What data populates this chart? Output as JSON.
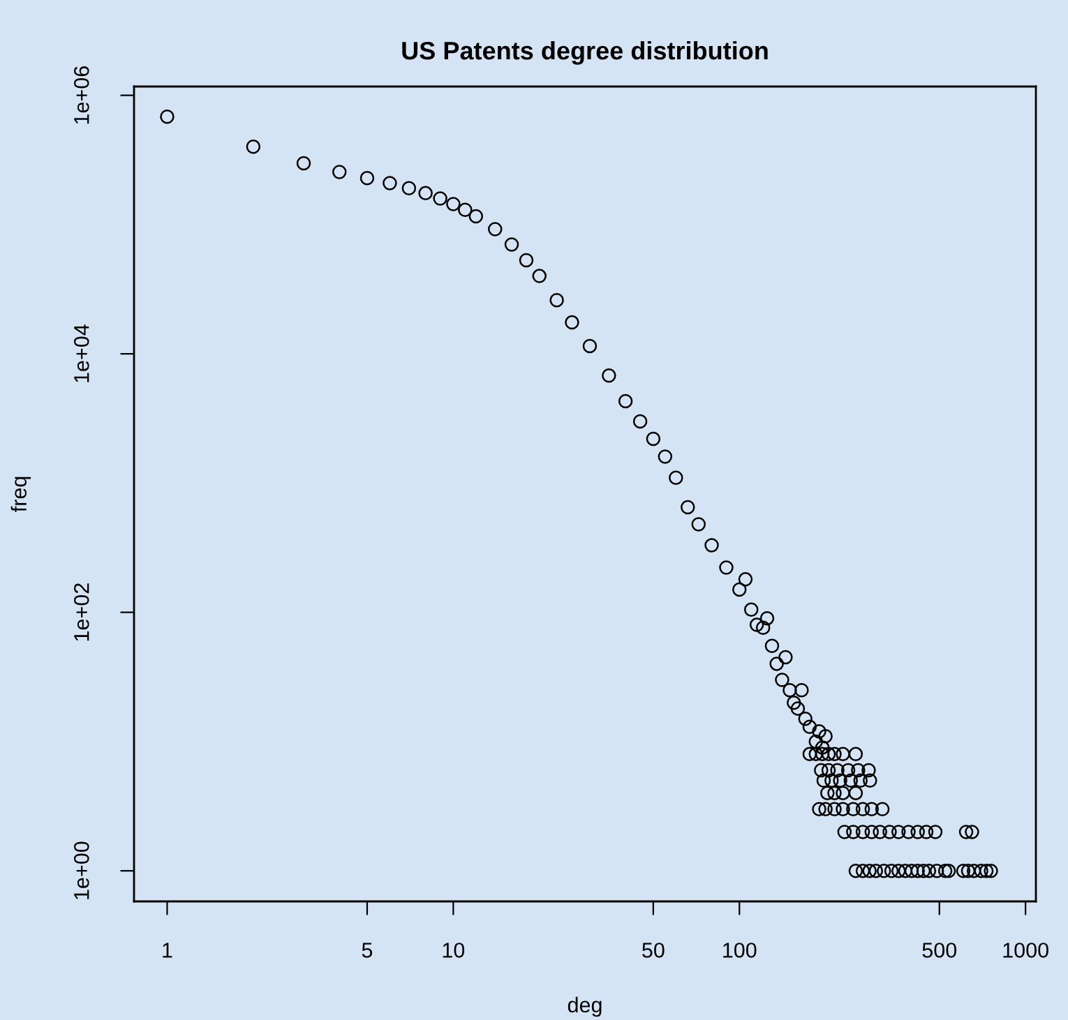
{
  "chart_data": {
    "type": "scatter",
    "title": "US Patents degree distribution",
    "xlabel": "deg",
    "ylabel": "freq",
    "log": "xy",
    "marker": "circle",
    "grid": false,
    "xlim": [
      0.766,
      1087
    ],
    "xticks": [
      1,
      5,
      10,
      50,
      100,
      500,
      1000
    ],
    "ylim": [
      0.58,
      1170000
    ],
    "yticks": [
      {
        "value": 1,
        "label": "1e+00"
      },
      {
        "value": 100,
        "label": "1e+02"
      },
      {
        "value": 10000,
        "label": "1e+04"
      },
      {
        "value": 1000000,
        "label": "1e+06"
      }
    ],
    "series": [
      {
        "color": "#000000",
        "x": [
          1,
          2,
          3,
          4,
          5,
          6,
          7,
          8,
          9,
          10,
          11,
          12,
          14,
          16,
          18,
          20,
          23,
          26,
          30,
          35,
          40,
          45,
          50,
          55,
          60,
          66,
          72,
          80,
          90,
          100,
          105,
          110,
          115,
          121,
          125,
          130,
          135,
          141,
          145,
          150,
          155,
          160,
          165,
          170,
          176,
          185,
          190,
          195,
          200,
          176,
          185,
          195,
          205,
          215,
          230,
          255,
          193,
          205,
          220,
          240,
          260,
          283,
          197,
          210,
          225,
          245,
          265,
          286,
          203,
          215,
          230,
          255,
          190,
          200,
          215,
          230,
          250,
          270,
          290,
          316,
          233,
          250,
          270,
          290,
          310,
          335,
          360,
          390,
          420,
          450,
          484,
          620,
          650,
          255,
          270,
          285,
          300,
          320,
          340,
          360,
          380,
          400,
          420,
          440,
          460,
          490,
          524,
          539,
          606,
          630,
          660,
          700,
          730,
          757
        ],
        "values": [
          684000,
          400000,
          298000,
          255000,
          229000,
          209000,
          191000,
          175000,
          159000,
          144000,
          130000,
          116000,
          92000,
          70000,
          53000,
          40000,
          26000,
          17500,
          11500,
          6800,
          4300,
          3000,
          2200,
          1600,
          1100,
          650,
          480,
          330,
          222,
          150,
          180,
          105,
          80,
          76,
          90,
          55,
          40,
          30,
          45,
          25,
          20,
          18,
          25,
          15,
          13,
          10,
          12,
          9,
          11,
          8,
          8,
          8,
          8,
          8,
          8,
          8,
          6,
          6,
          6,
          6,
          6,
          6,
          5,
          5,
          5,
          5,
          5,
          5,
          4,
          4,
          4,
          4,
          3,
          3,
          3,
          3,
          3,
          3,
          3,
          3,
          2,
          2,
          2,
          2,
          2,
          2,
          2,
          2,
          2,
          2,
          2,
          2,
          2,
          1,
          1,
          1,
          1,
          1,
          1,
          1,
          1,
          1,
          1,
          1,
          1,
          1,
          1,
          1,
          1,
          1,
          1,
          1,
          1,
          1
        ]
      }
    ]
  }
}
